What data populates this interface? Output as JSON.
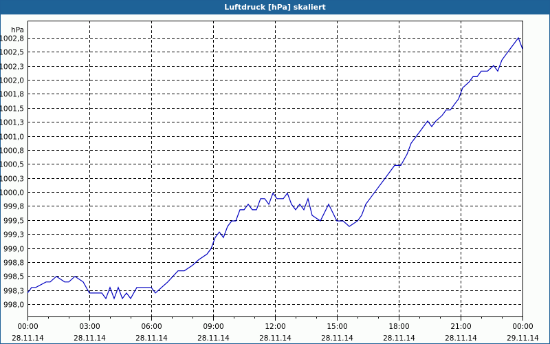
{
  "window": {
    "title": "Luftdruck [hPa] skaliert"
  },
  "chart_data": {
    "type": "line",
    "title": "Luftdruck [hPa] skaliert",
    "xlabel": "",
    "ylabel": "hPa",
    "ylim": [
      997.85,
      1002.95
    ],
    "grid": true,
    "y_ticks": [
      "1002,8",
      "1002,5",
      "1002,3",
      "1002,0",
      "1001,8",
      "1001,5",
      "1001,3",
      "1001,0",
      "1000,8",
      "1000,5",
      "1000,3",
      "1000,0",
      "999,8",
      "999,5",
      "999,3",
      "999,0",
      "998,8",
      "998,5",
      "998,3",
      "998,0"
    ],
    "x_ticks": [
      {
        "time": "00:00",
        "date": "28.11.14"
      },
      {
        "time": "03:00",
        "date": "28.11.14"
      },
      {
        "time": "06:00",
        "date": "28.11.14"
      },
      {
        "time": "09:00",
        "date": "28.11.14"
      },
      {
        "time": "12:00",
        "date": "28.11.14"
      },
      {
        "time": "15:00",
        "date": "28.11.14"
      },
      {
        "time": "18:00",
        "date": "28.11.14"
      },
      {
        "time": "21:00",
        "date": "28.11.14"
      },
      {
        "time": "00:00",
        "date": "29.11.14"
      }
    ],
    "series": [
      {
        "name": "Luftdruck",
        "color": "#0000c0",
        "x_hours": [
          0,
          0.2,
          0.4,
          0.9,
          1.1,
          1.4,
          1.8,
          2.0,
          2.3,
          2.7,
          3.0,
          3.3,
          3.6,
          3.8,
          4.0,
          4.2,
          4.4,
          4.6,
          4.8,
          5.0,
          5.3,
          5.6,
          5.8,
          6.0,
          6.2,
          6.5,
          6.8,
          7.3,
          7.6,
          8.0,
          8.3,
          8.7,
          8.9,
          9.1,
          9.3,
          9.5,
          9.7,
          9.9,
          10.1,
          10.3,
          10.5,
          10.7,
          10.9,
          11.1,
          11.3,
          11.5,
          11.7,
          11.9,
          12.1,
          12.4,
          12.6,
          12.8,
          13.0,
          13.2,
          13.4,
          13.6,
          13.8,
          14.2,
          14.6,
          15.0,
          15.3,
          15.6,
          16.0,
          16.2,
          16.4,
          16.6,
          17.0,
          17.4,
          17.8,
          18.1,
          18.4,
          18.6,
          18.8,
          19.0,
          19.2,
          19.4,
          19.6,
          19.8,
          20.1,
          20.3,
          20.5,
          20.7,
          20.9,
          21.1,
          21.4,
          21.6,
          21.8,
          22.0,
          22.3,
          22.6,
          22.8,
          23.0,
          23.2,
          23.4,
          23.6,
          23.8,
          24.0
        ],
        "values": [
          998.2,
          998.3,
          998.3,
          998.4,
          998.4,
          998.5,
          998.4,
          998.4,
          998.5,
          998.4,
          998.2,
          998.2,
          998.2,
          998.1,
          998.3,
          998.1,
          998.3,
          998.1,
          998.2,
          998.1,
          998.3,
          998.3,
          998.3,
          998.3,
          998.2,
          998.3,
          998.4,
          998.6,
          998.6,
          998.7,
          998.8,
          998.9,
          999.0,
          999.2,
          999.3,
          999.2,
          999.4,
          999.5,
          999.5,
          999.7,
          999.7,
          999.8,
          999.7,
          999.7,
          999.9,
          999.9,
          999.8,
          1000.0,
          999.9,
          999.9,
          1000.0,
          999.8,
          999.7,
          999.8,
          999.7,
          999.9,
          999.6,
          999.5,
          999.8,
          999.5,
          999.5,
          999.4,
          999.5,
          999.6,
          999.8,
          999.9,
          1000.1,
          1000.3,
          1000.5,
          1000.5,
          1000.7,
          1000.9,
          1001.0,
          1001.1,
          1001.2,
          1001.3,
          1001.2,
          1001.3,
          1001.4,
          1001.5,
          1001.5,
          1001.6,
          1001.7,
          1001.9,
          1002.0,
          1002.1,
          1002.1,
          1002.2,
          1002.2,
          1002.3,
          1002.2,
          1002.4,
          1002.5,
          1002.6,
          1002.7,
          1002.8,
          1002.6
        ]
      }
    ]
  }
}
